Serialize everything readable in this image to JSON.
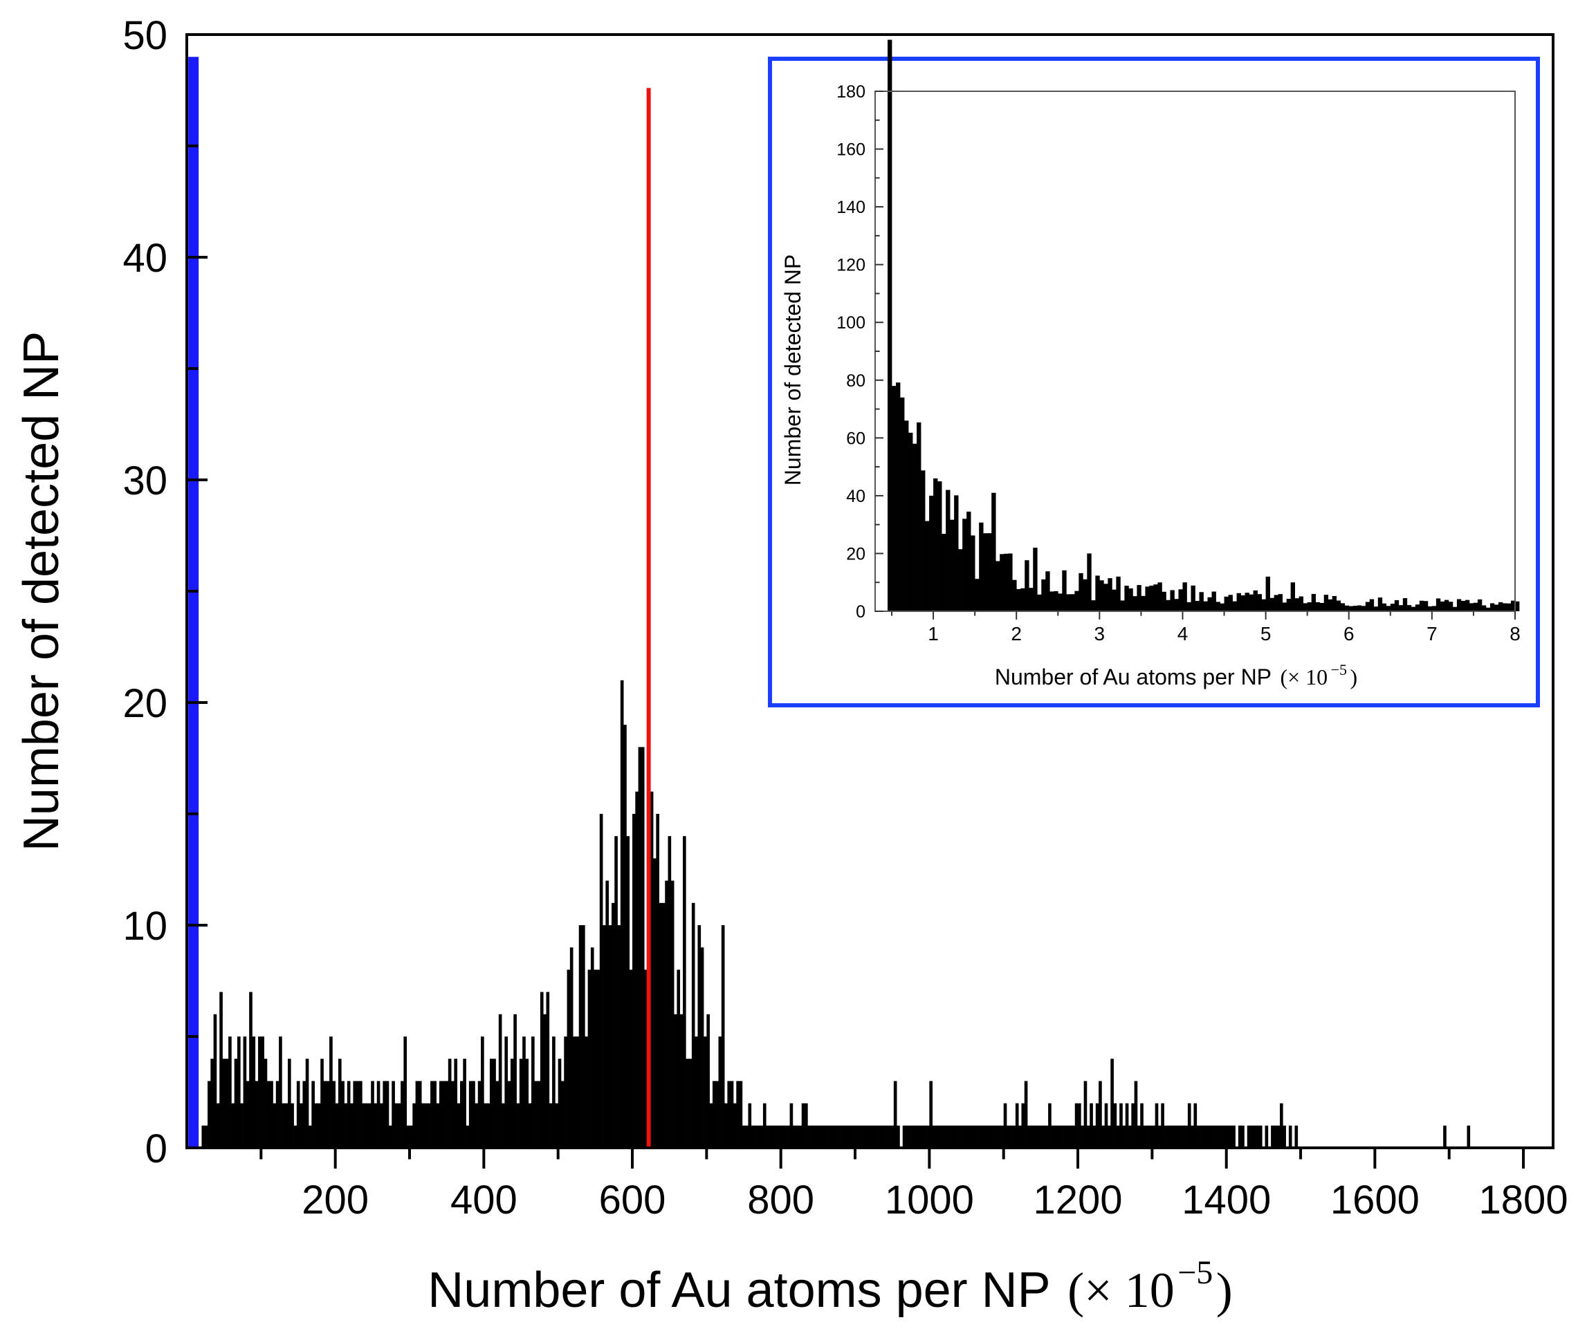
{
  "chart_data": [
    {
      "type": "bar",
      "role": "main-histogram",
      "xlabel": "Number of Au atoms per NP",
      "xlabel_unit": "(× 10",
      "xlabel_exp": "−5",
      "xlabel_close": ")",
      "ylabel": "Number of detected NP",
      "xlim": [
        0,
        1840
      ],
      "ylim": [
        0,
        50
      ],
      "x_ticks": [
        200,
        400,
        600,
        800,
        1000,
        1200,
        1400,
        1600,
        1800
      ],
      "x_tick_labels": [
        "200",
        "400",
        "600",
        "800",
        "1000",
        "1200",
        "1400",
        "1600",
        "1800"
      ],
      "y_ticks": [
        0,
        10,
        20,
        30,
        40,
        50
      ],
      "y_tick_labels": [
        "0",
        "10",
        "20",
        "30",
        "40",
        "50"
      ],
      "bin_width": 4,
      "bin_start": 20,
      "anchors": [
        [
          20,
          3
        ],
        [
          40,
          3.5
        ],
        [
          60,
          3.5
        ],
        [
          80,
          3.5
        ],
        [
          100,
          3.2
        ],
        [
          140,
          2.8
        ],
        [
          180,
          2.4
        ],
        [
          220,
          2.5
        ],
        [
          260,
          2
        ],
        [
          300,
          2.2
        ],
        [
          340,
          2.4
        ],
        [
          380,
          2.7
        ],
        [
          420,
          3.1
        ],
        [
          460,
          3.6
        ],
        [
          490,
          4.4
        ],
        [
          510,
          5.5
        ],
        [
          530,
          7
        ],
        [
          550,
          9
        ],
        [
          570,
          11.2
        ],
        [
          590,
          12.8
        ],
        [
          605,
          13.3
        ],
        [
          620,
          13
        ],
        [
          640,
          11.6
        ],
        [
          660,
          9.8
        ],
        [
          680,
          7.6
        ],
        [
          700,
          5.6
        ],
        [
          720,
          3.8
        ],
        [
          740,
          2.6
        ],
        [
          760,
          1.6
        ],
        [
          790,
          1.2
        ],
        [
          850,
          1
        ],
        [
          950,
          0.9
        ],
        [
          1050,
          0.9
        ],
        [
          1150,
          1.2
        ],
        [
          1200,
          1.6
        ],
        [
          1250,
          1.6
        ],
        [
          1300,
          1.1
        ],
        [
          1400,
          0.9
        ],
        [
          1460,
          0.6
        ],
        [
          1500,
          0.3
        ],
        [
          1600,
          0.25
        ],
        [
          1700,
          0.35
        ],
        [
          1840,
          0.2
        ]
      ],
      "spikes": [
        [
          36,
          6
        ],
        [
          44,
          7
        ],
        [
          76,
          5
        ],
        [
          84,
          7
        ],
        [
          124,
          5
        ],
        [
          192,
          5
        ],
        [
          292,
          5
        ],
        [
          396,
          5
        ],
        [
          420,
          6
        ],
        [
          440,
          6
        ],
        [
          476,
          7
        ],
        [
          512,
          8
        ],
        [
          540,
          8
        ],
        [
          560,
          10
        ],
        [
          576,
          14
        ],
        [
          584,
          21
        ],
        [
          592,
          14
        ],
        [
          600,
          15
        ],
        [
          608,
          18
        ],
        [
          624,
          16
        ],
        [
          632,
          15
        ],
        [
          648,
          14
        ],
        [
          668,
          14
        ],
        [
          692,
          9
        ],
        [
          720,
          10
        ],
        [
          896,
          1
        ],
        [
          952,
          3
        ],
        [
          1000,
          3
        ],
        [
          1100,
          2
        ],
        [
          1128,
          3
        ],
        [
          1208,
          3
        ],
        [
          1228,
          3
        ],
        [
          1244,
          4
        ],
        [
          1276,
          3
        ],
        [
          1356,
          2
        ],
        [
          1472,
          2
        ]
      ],
      "reference_lines": [
        {
          "x": 9,
          "y_top": 49,
          "color": "#1a1aff",
          "label": "blue-marker"
        },
        {
          "x": 622,
          "y_top": 47.6,
          "color": "#ee1111",
          "label": "red-marker"
        }
      ]
    },
    {
      "type": "bar",
      "role": "inset-histogram",
      "xlabel": "Number of Au atoms per NP",
      "xlabel_unit": "(× 10",
      "xlabel_exp": "−5",
      "xlabel_close": ")",
      "ylabel": "Number of detected NP",
      "xlim": [
        0.3,
        8
      ],
      "ylim": [
        0,
        180
      ],
      "x_ticks": [
        1,
        2,
        3,
        4,
        5,
        6,
        7,
        8
      ],
      "x_tick_labels": [
        "1",
        "2",
        "3",
        "4",
        "5",
        "6",
        "7",
        "8"
      ],
      "y_ticks": [
        0,
        20,
        40,
        60,
        80,
        100,
        120,
        140,
        160,
        180
      ],
      "y_tick_labels": [
        "0",
        "20",
        "40",
        "60",
        "80",
        "100",
        "120",
        "140",
        "160",
        "180"
      ],
      "bin_width": 0.05,
      "bin_start": 0.45,
      "frame_color": "#1a3fff",
      "anchors": [
        [
          0.45,
          175
        ],
        [
          0.5,
          75
        ],
        [
          0.6,
          64
        ],
        [
          0.7,
          55
        ],
        [
          0.8,
          46
        ],
        [
          1.0,
          36
        ],
        [
          1.2,
          30
        ],
        [
          1.4,
          24
        ],
        [
          1.6,
          20
        ],
        [
          1.8,
          16
        ],
        [
          2.0,
          13
        ],
        [
          2.5,
          10
        ],
        [
          3.0,
          8
        ],
        [
          3.5,
          7
        ],
        [
          4.0,
          6
        ],
        [
          5.0,
          4.5
        ],
        [
          6.0,
          3.5
        ],
        [
          7.0,
          3
        ],
        [
          8.0,
          2.5
        ]
      ],
      "spikes": [
        [
          0.5,
          78
        ],
        [
          0.6,
          74
        ],
        [
          0.65,
          66
        ],
        [
          0.75,
          58
        ],
        [
          0.95,
          40
        ],
        [
          1.0,
          46
        ],
        [
          1.15,
          42
        ],
        [
          1.35,
          32
        ],
        [
          1.6,
          27
        ],
        [
          1.7,
          41
        ],
        [
          1.9,
          20
        ],
        [
          2.2,
          22
        ],
        [
          2.85,
          20
        ],
        [
          3.2,
          12
        ],
        [
          4.0,
          10
        ],
        [
          5.0,
          12
        ],
        [
          5.3,
          10
        ]
      ]
    }
  ]
}
